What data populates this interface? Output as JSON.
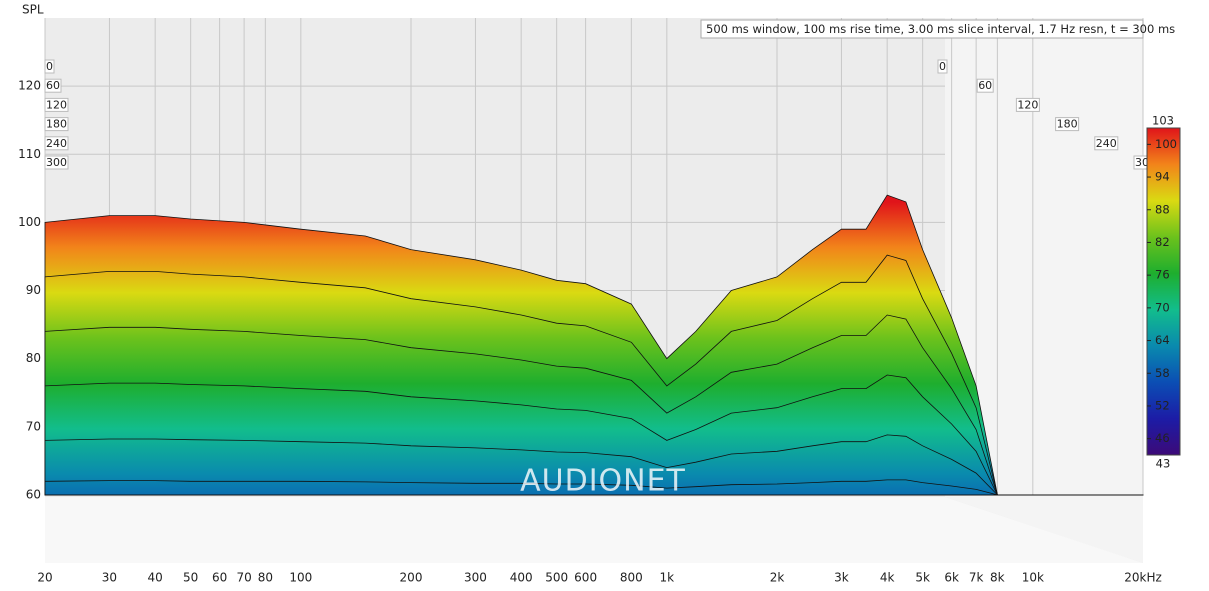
{
  "chart_data": {
    "type": "waterfall",
    "y_label": "SPL",
    "annotation": "500 ms window, 100 ms rise time, 3.00 ms slice interval, 1.7 Hz resn, t = 300 ms",
    "watermark": "AUDIONET",
    "log_x": true,
    "grid": true,
    "xlim": [
      20,
      20000
    ],
    "ylim": [
      50,
      130
    ],
    "xticks": [
      20,
      30,
      40,
      50,
      60,
      70,
      80,
      100,
      200,
      300,
      400,
      500,
      600,
      800,
      {
        "value": 1000,
        "label": "1k"
      },
      {
        "value": 2000,
        "label": "2k"
      },
      {
        "value": 3000,
        "label": "3k"
      },
      {
        "value": 4000,
        "label": "4k"
      },
      {
        "value": 5000,
        "label": "5k"
      },
      {
        "value": 6000,
        "label": "6k"
      },
      {
        "value": 7000,
        "label": "7k"
      },
      {
        "value": 8000,
        "label": "8k"
      },
      {
        "value": 10000,
        "label": "10k"
      },
      {
        "value": 20000,
        "label": "20kHz"
      }
    ],
    "yticks": [
      60,
      70,
      80,
      90,
      100,
      110,
      120
    ],
    "times": [
      0,
      60,
      120,
      180,
      240,
      300
    ],
    "x": [
      20,
      30,
      40,
      50,
      70,
      100,
      150,
      200,
      300,
      400,
      500,
      600,
      800,
      1000,
      1200,
      1500,
      2000,
      2500,
      3000,
      3500,
      4000,
      4500,
      5000,
      6000,
      7000,
      8000,
      10000,
      20000
    ],
    "slices": [
      [
        100,
        101,
        101,
        100.5,
        100,
        99,
        98,
        96,
        94.5,
        93,
        91.5,
        91,
        88,
        80,
        84,
        90,
        92,
        96,
        99,
        99,
        104,
        103,
        96,
        86,
        76,
        60,
        60,
        60
      ],
      [
        92,
        92.8,
        92.8,
        92.4,
        92,
        91.2,
        90.4,
        88.8,
        87.6,
        86.4,
        85.2,
        84.8,
        82.4,
        76,
        79.2,
        84,
        85.6,
        88.8,
        91.2,
        91.2,
        95.2,
        94.4,
        88.8,
        80.8,
        72.8,
        60,
        60,
        60
      ],
      [
        84,
        84.6,
        84.6,
        84.3,
        84,
        83.4,
        82.8,
        81.6,
        80.7,
        79.8,
        78.9,
        78.6,
        76.8,
        72,
        74.4,
        78,
        79.2,
        81.6,
        83.4,
        83.4,
        86.4,
        85.8,
        81.6,
        75.6,
        69.6,
        60,
        60,
        60
      ],
      [
        76,
        76.4,
        76.4,
        76.2,
        76,
        75.6,
        75.2,
        74.4,
        73.8,
        73.2,
        72.6,
        72.4,
        71.2,
        68,
        69.6,
        72,
        72.8,
        74.4,
        75.6,
        75.6,
        77.6,
        77.2,
        74.4,
        70.4,
        66.4,
        60,
        60,
        60
      ],
      [
        68,
        68.2,
        68.2,
        68.1,
        68,
        67.8,
        67.6,
        67.2,
        66.9,
        66.6,
        66.3,
        66.2,
        65.6,
        64,
        64.8,
        66,
        66.4,
        67.2,
        67.8,
        67.8,
        68.8,
        68.6,
        67.2,
        65.2,
        63.2,
        60,
        60,
        60
      ],
      [
        62,
        62.1,
        62.1,
        62,
        62,
        62,
        61.9,
        61.8,
        61.7,
        61.7,
        61.6,
        61.6,
        61.4,
        61,
        61.2,
        61.5,
        61.6,
        61.8,
        62,
        62,
        62.2,
        62.2,
        61.8,
        61.3,
        60.8,
        60,
        60,
        60
      ]
    ],
    "zlim": [
      43,
      103
    ],
    "zticks": [
      46,
      52,
      58,
      64,
      70,
      76,
      82,
      88,
      94,
      100
    ],
    "colormap": [
      "#3c0a78",
      "#1c1ca6",
      "#0b4eb4",
      "#0a8aae",
      "#12bd8c",
      "#1eae2e",
      "#6cc21c",
      "#dada12",
      "#f2841a",
      "#e0141a"
    ]
  }
}
